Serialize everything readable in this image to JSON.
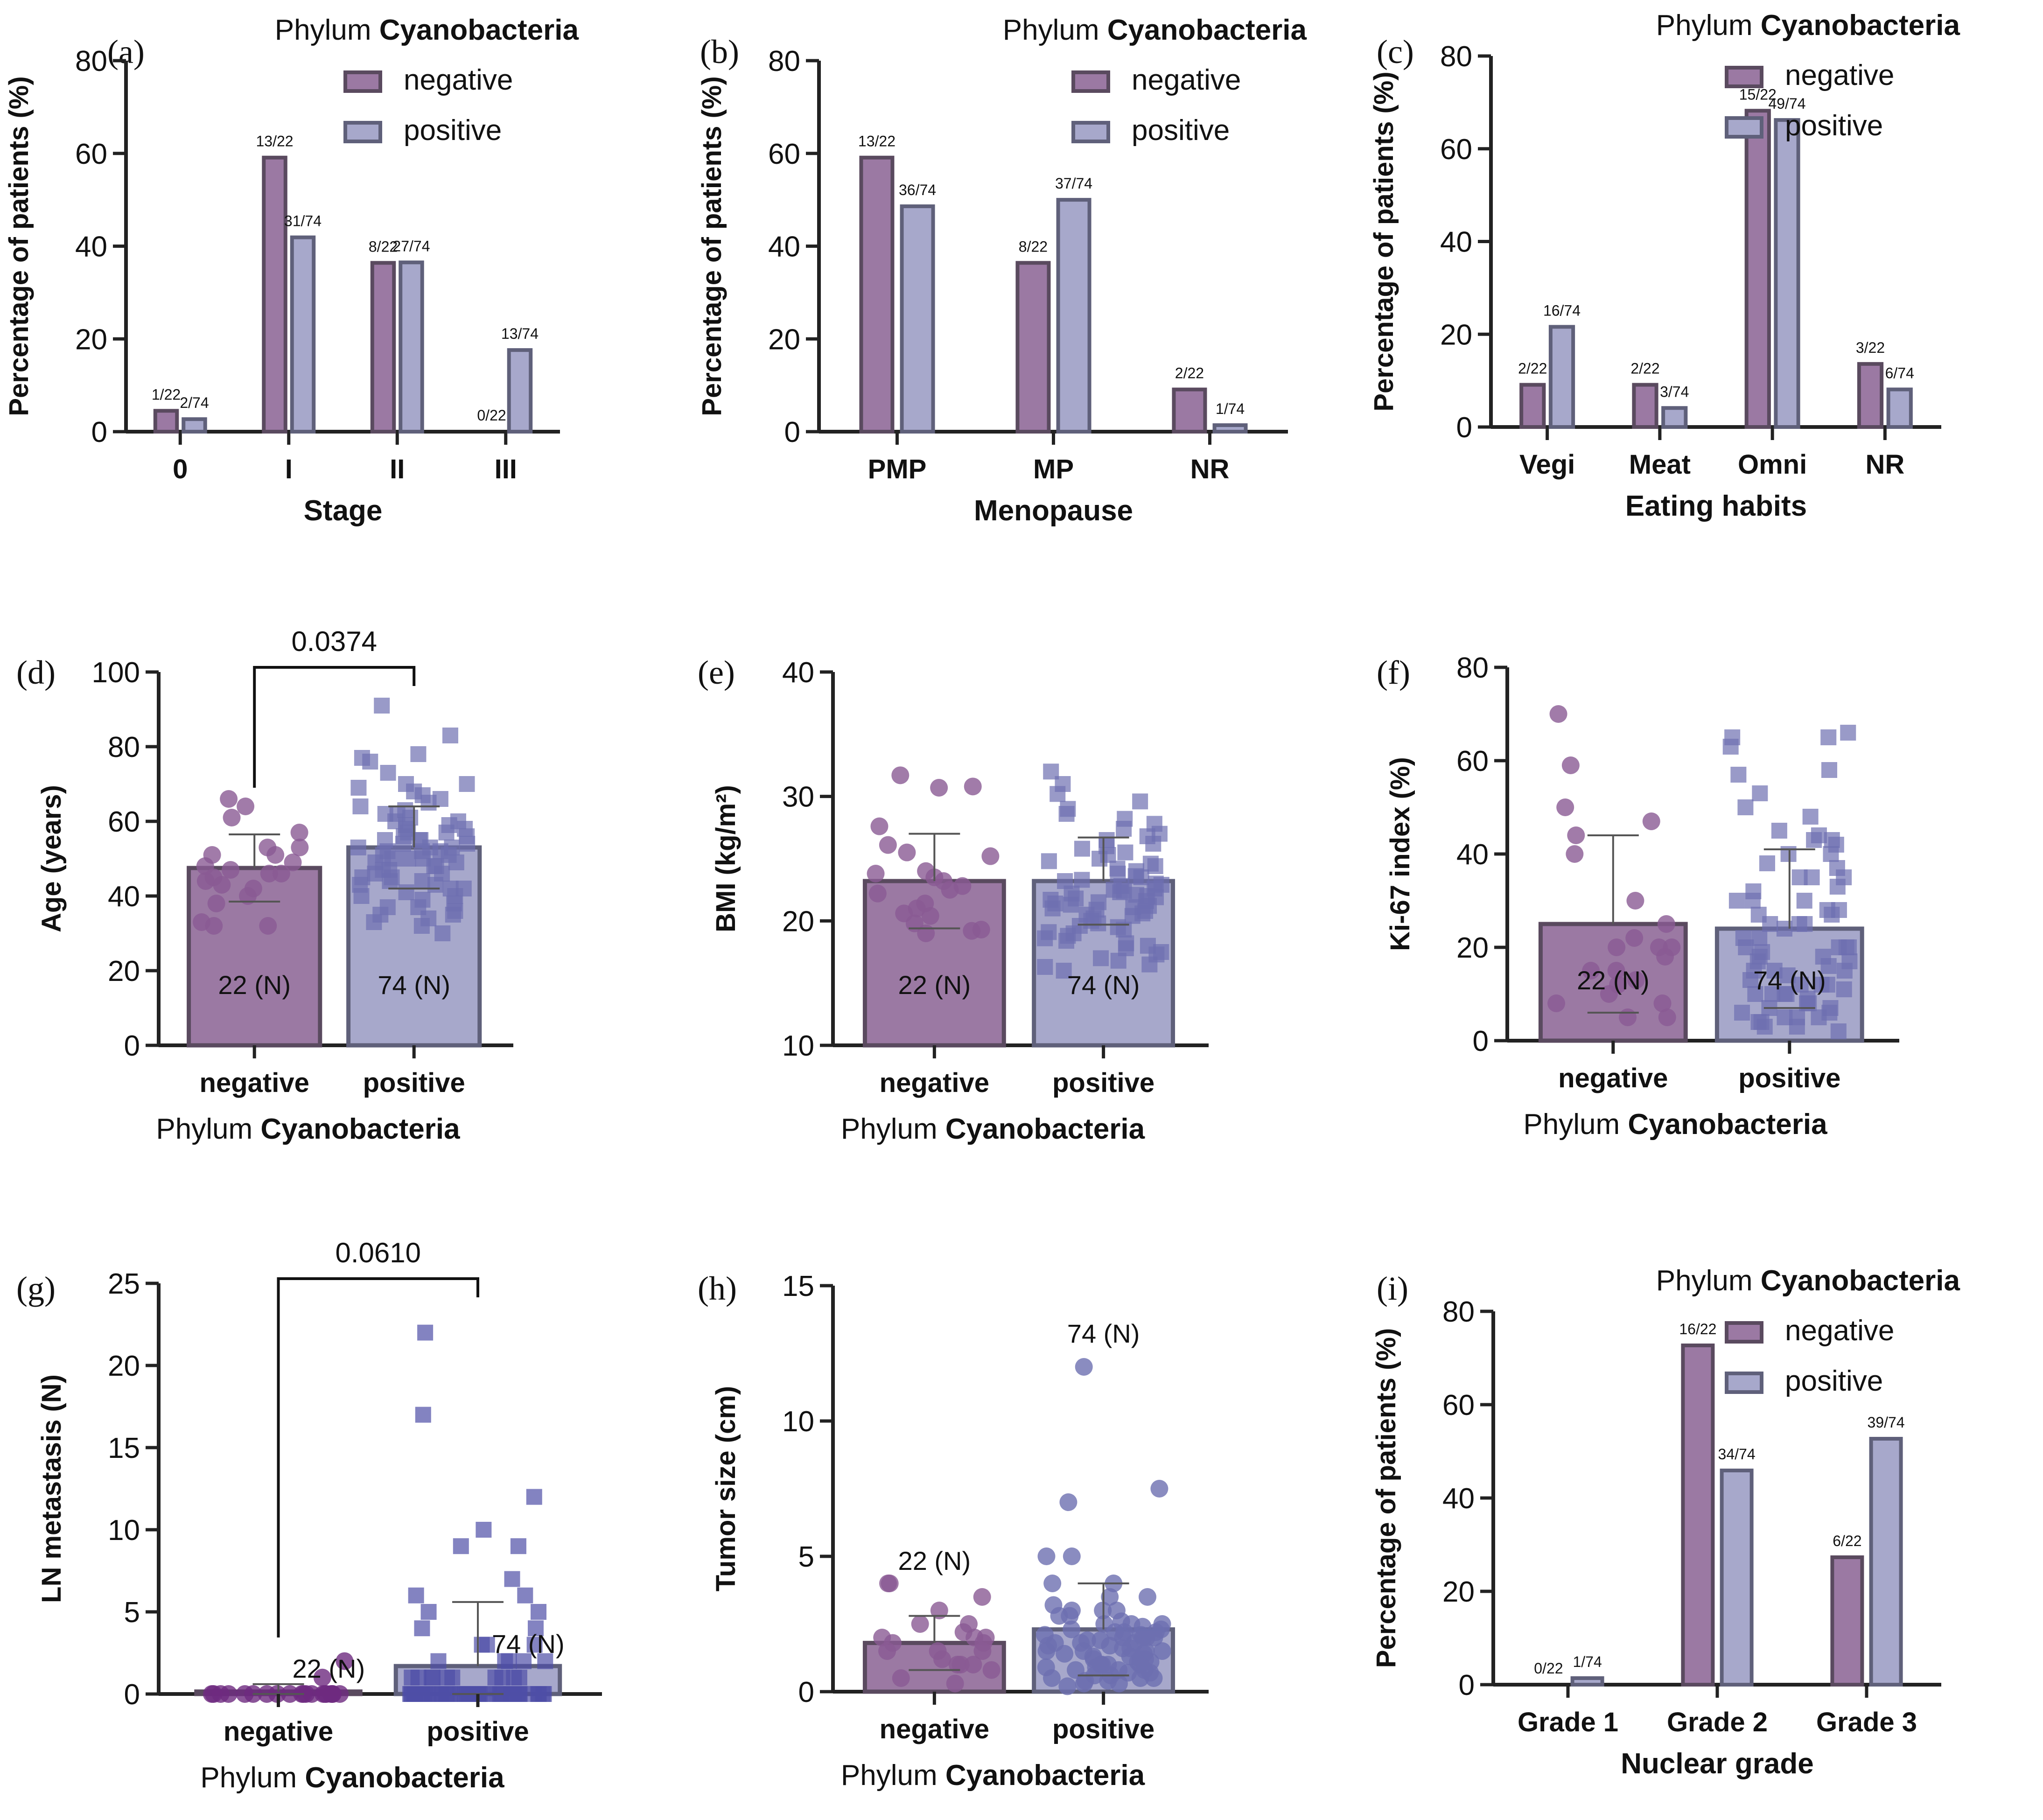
{
  "colors": {
    "negative_fill": "#9b79a3",
    "negative_stroke": "#5a4a5f",
    "positive_fill": "#a7a8cb",
    "positive_stroke": "#5f607a",
    "negative_point": "#8a5a94",
    "positive_point": "#6d6fb0",
    "ln_negative_point": "#6e2b80",
    "ln_positive_point": "#4e4fa6"
  },
  "chart_data": [
    {
      "panel": "(a)",
      "type": "bar",
      "legend_title_prefix": "Phylum ",
      "legend_title_bold": "Cyanobacteria",
      "series_names": [
        "negative",
        "positive"
      ],
      "categories": [
        "0",
        "I",
        "II",
        "III"
      ],
      "series": [
        {
          "name": "negative",
          "values": [
            4.5,
            59.1,
            36.4,
            0
          ],
          "labels": [
            "1/22",
            "13/22",
            "8/22",
            "0/22"
          ]
        },
        {
          "name": "positive",
          "values": [
            2.7,
            41.9,
            36.5,
            17.6
          ],
          "labels": [
            "2/74",
            "31/74",
            "27/74",
            "13/74"
          ]
        }
      ],
      "xlabel": "Stage",
      "ylabel": "Percentage of patients (%)",
      "ylim": [
        0,
        80
      ],
      "yticks": [
        "0",
        "20",
        "40",
        "60",
        "80"
      ]
    },
    {
      "panel": "(b)",
      "type": "bar",
      "legend_title_prefix": "Phylum ",
      "legend_title_bold": "Cyanobacteria",
      "series_names": [
        "negative",
        "positive"
      ],
      "categories": [
        "PMP",
        "MP",
        "NR"
      ],
      "series": [
        {
          "name": "negative",
          "values": [
            59.1,
            36.4,
            9.1
          ],
          "labels": [
            "13/22",
            "8/22",
            "2/22"
          ]
        },
        {
          "name": "positive",
          "values": [
            48.6,
            50.0,
            1.4
          ],
          "labels": [
            "36/74",
            "37/74",
            "1/74"
          ]
        }
      ],
      "xlabel": "Menopause",
      "ylabel": "Percentage of patients (%)",
      "ylim": [
        0,
        80
      ],
      "yticks": [
        "0",
        "20",
        "40",
        "60",
        "80"
      ]
    },
    {
      "panel": "(c)",
      "type": "bar",
      "legend_title_prefix": "Phylum ",
      "legend_title_bold": "Cyanobacteria",
      "series_names": [
        "negative",
        "positive"
      ],
      "categories": [
        "Vegi",
        "Meat",
        "Omni",
        "NR"
      ],
      "series": [
        {
          "name": "negative",
          "values": [
            9.1,
            9.1,
            68.2,
            13.6
          ],
          "labels": [
            "2/22",
            "2/22",
            "15/22",
            "3/22"
          ]
        },
        {
          "name": "positive",
          "values": [
            21.6,
            4.1,
            66.2,
            8.1
          ],
          "labels": [
            "16/74",
            "3/74",
            "49/74",
            "6/74"
          ]
        }
      ],
      "xlabel": "Eating habits",
      "ylabel": "Percentage of patients (%)",
      "ylim": [
        0,
        80
      ],
      "yticks": [
        "0",
        "20",
        "40",
        "60",
        "80"
      ]
    },
    {
      "panel": "(d)",
      "type": "scatter-bar",
      "categories": [
        "negative",
        "positive"
      ],
      "means": [
        47.5,
        53
      ],
      "sd": [
        9,
        11
      ],
      "n_labels": [
        "22 (N)",
        "74 (N)"
      ],
      "points": [
        [
          66,
          64,
          61,
          57,
          53,
          53,
          51,
          51,
          49,
          48,
          47,
          46,
          46,
          45,
          44,
          43,
          42,
          40,
          38,
          33,
          32,
          32
        ],
        [
          91,
          83,
          78,
          77,
          76,
          73,
          70,
          70,
          69,
          68,
          67,
          66,
          65,
          64,
          63,
          62,
          62,
          61,
          60,
          60,
          59,
          59,
          58,
          58,
          57,
          57,
          56,
          56,
          55,
          55,
          55,
          54,
          54,
          53,
          53,
          53,
          52,
          52,
          52,
          51,
          51,
          50,
          50,
          50,
          49,
          49,
          48,
          48,
          47,
          47,
          46,
          46,
          45,
          45,
          44,
          44,
          43,
          43,
          42,
          42,
          41,
          40,
          40,
          39,
          38,
          37,
          37,
          36,
          35,
          35,
          34,
          33,
          32,
          30
        ]
      ],
      "pvalue": "0.0374",
      "xlabel_prefix": "Phylum ",
      "xlabel_bold": "Cyanobacteria",
      "ylabel": "Age (years)",
      "ylim": [
        0,
        100
      ],
      "yticks": [
        "0",
        "20",
        "40",
        "60",
        "80",
        "100"
      ]
    },
    {
      "panel": "(e)",
      "type": "scatter-bar",
      "categories": [
        "negative",
        "positive"
      ],
      "means": [
        23.2,
        23.2
      ],
      "sd": [
        3.8,
        3.5
      ],
      "n_labels": [
        "22 (N)",
        "74 (N)"
      ],
      "points": [
        [
          31.7,
          30.8,
          30.7,
          27.6,
          26.1,
          25.5,
          25.2,
          24.0,
          23.8,
          23.5,
          23.2,
          22.8,
          22.5,
          22.2,
          21.4,
          21.0,
          20.6,
          20.4,
          19.8,
          19.3,
          19.2,
          19.0
        ],
        [
          32.0,
          31.0,
          30.2,
          29.6,
          29.0,
          28.6,
          28.2,
          27.8,
          27.4,
          27.0,
          26.8,
          26.5,
          26.2,
          26.0,
          25.8,
          25.5,
          25.3,
          25.0,
          24.8,
          24.6,
          24.4,
          24.2,
          24.0,
          23.8,
          23.6,
          23.5,
          23.3,
          23.2,
          23.0,
          22.9,
          22.8,
          22.6,
          22.5,
          22.4,
          22.3,
          22.2,
          22.1,
          22.0,
          21.9,
          21.8,
          21.7,
          21.6,
          21.5,
          21.4,
          21.3,
          21.2,
          21.1,
          21.0,
          20.9,
          20.8,
          20.6,
          20.5,
          20.4,
          20.2,
          20.0,
          19.8,
          19.6,
          19.5,
          19.3,
          19.1,
          19.0,
          18.8,
          18.6,
          18.4,
          18.2,
          18.0,
          17.8,
          17.5,
          17.3,
          17.0,
          16.8,
          16.5,
          16.3,
          16.0
        ]
      ],
      "pvalue": "",
      "xlabel_prefix": "Phylum ",
      "xlabel_bold": "Cyanobacteria",
      "ylabel": "BMI (kg/m²)",
      "ylim": [
        10,
        40
      ],
      "yticks": [
        "10",
        "20",
        "30",
        "40"
      ]
    },
    {
      "panel": "(f)",
      "type": "scatter-bar",
      "categories": [
        "negative",
        "positive"
      ],
      "means": [
        25,
        24
      ],
      "sd": [
        19,
        17
      ],
      "n_labels": [
        "22 (N)",
        "74 (N)"
      ],
      "points": [
        [
          70,
          59,
          50,
          47,
          44,
          40,
          30,
          25,
          22,
          20,
          20,
          20,
          18,
          15,
          15,
          13,
          12,
          10,
          8,
          8,
          5,
          5
        ],
        [
          66,
          65,
          65,
          63,
          58,
          57,
          53,
          50,
          48,
          45,
          44,
          43,
          43,
          42,
          40,
          40,
          38,
          37,
          35,
          35,
          35,
          33,
          32,
          30,
          30,
          30,
          28,
          28,
          27,
          27,
          25,
          25,
          25,
          24,
          22,
          22,
          20,
          20,
          20,
          20,
          19,
          18,
          18,
          17,
          17,
          16,
          15,
          15,
          15,
          14,
          13,
          12,
          12,
          12,
          11,
          10,
          10,
          10,
          10,
          9,
          8,
          8,
          7,
          7,
          6,
          6,
          5,
          5,
          5,
          4,
          4,
          3,
          3,
          2
        ]
      ],
      "pvalue": "",
      "xlabel_prefix": "Phylum ",
      "xlabel_bold": "Cyanobacteria",
      "ylabel": "Ki-67 index (%)",
      "ylim": [
        0,
        80
      ],
      "yticks": [
        "0",
        "20",
        "40",
        "60",
        "80"
      ]
    },
    {
      "panel": "(g)",
      "type": "scatter-bar",
      "categories": [
        "negative",
        "positive"
      ],
      "means": [
        0.15,
        1.7
      ],
      "sd": [
        0.45,
        3.9
      ],
      "n_labels": [
        "22 (N)",
        "74 (N)"
      ],
      "points": [
        [
          2,
          1,
          0,
          0,
          0,
          0,
          0,
          0,
          0,
          0,
          0,
          0,
          0,
          0,
          0,
          0,
          0,
          0,
          0,
          0,
          0,
          0
        ],
        [
          22,
          17,
          12,
          10,
          9,
          9,
          7,
          6,
          6,
          5,
          5,
          4,
          4,
          3,
          3,
          3,
          2,
          2,
          2,
          2,
          2,
          1,
          1,
          1,
          1,
          1,
          1,
          1,
          1,
          1,
          1,
          0,
          0,
          0,
          0,
          0,
          0,
          0,
          0,
          0,
          0,
          0,
          0,
          0,
          0,
          0,
          0,
          0,
          0,
          0,
          0,
          0,
          0,
          0,
          0,
          0,
          0,
          0,
          0,
          0,
          0,
          0,
          0,
          0,
          0,
          0,
          0,
          0,
          0,
          0,
          0,
          0,
          0,
          0
        ]
      ],
      "pvalue": "0.0610",
      "xlabel_prefix": "Phylum ",
      "xlabel_bold": "Cyanobacteria",
      "ylabel": "LN metastasis (N)",
      "ylim": [
        0,
        25
      ],
      "yticks": [
        "0",
        "5",
        "10",
        "15",
        "20",
        "25"
      ]
    },
    {
      "panel": "(h)",
      "type": "scatter-bar",
      "categories": [
        "negative",
        "positive"
      ],
      "means": [
        1.8,
        2.3
      ],
      "sd": [
        1.0,
        1.7
      ],
      "n_labels": [
        "22 (N)",
        "74 (N)"
      ],
      "points": [
        [
          4.0,
          4.0,
          3.5,
          3.0,
          2.5,
          2.5,
          2.2,
          2.0,
          2.0,
          2.0,
          1.8,
          1.8,
          1.5,
          1.5,
          1.5,
          1.2,
          1.0,
          1.0,
          1.0,
          0.8,
          0.5,
          0.3
        ],
        [
          12.0,
          7.5,
          7.0,
          5.0,
          5.0,
          4.0,
          4.0,
          3.5,
          3.5,
          3.2,
          3.0,
          3.0,
          3.0,
          2.8,
          2.8,
          2.6,
          2.5,
          2.5,
          2.5,
          2.4,
          2.3,
          2.3,
          2.2,
          2.2,
          2.2,
          2.1,
          2.1,
          2.0,
          2.0,
          2.0,
          2.0,
          1.9,
          1.9,
          1.8,
          1.8,
          1.8,
          1.7,
          1.7,
          1.6,
          1.6,
          1.5,
          1.5,
          1.5,
          1.5,
          1.4,
          1.4,
          1.3,
          1.3,
          1.2,
          1.2,
          1.2,
          1.1,
          1.1,
          1.0,
          1.0,
          1.0,
          1.0,
          0.9,
          0.9,
          0.8,
          0.8,
          0.8,
          0.7,
          0.7,
          0.6,
          0.6,
          0.5,
          0.5,
          0.5,
          0.4,
          0.4,
          0.3,
          0.3,
          0.2
        ]
      ],
      "pvalue": "",
      "xlabel_prefix": "Phylum ",
      "xlabel_bold": "Cyanobacteria",
      "ylabel": "Tumor size (cm)",
      "ylim": [
        0,
        15
      ],
      "yticks": [
        "0",
        "5",
        "10",
        "15"
      ]
    },
    {
      "panel": "(i)",
      "type": "bar",
      "legend_title_prefix": "Phylum ",
      "legend_title_bold": "Cyanobacteria",
      "series_names": [
        "negative",
        "positive"
      ],
      "categories": [
        "Grade 1",
        "Grade 2",
        "Grade 3"
      ],
      "series": [
        {
          "name": "negative",
          "values": [
            0,
            72.7,
            27.3
          ],
          "labels": [
            "0/22",
            "16/22",
            "6/22"
          ]
        },
        {
          "name": "positive",
          "values": [
            1.4,
            45.9,
            52.7
          ],
          "labels": [
            "1/74",
            "34/74",
            "39/74"
          ]
        }
      ],
      "xlabel": "Nuclear grade",
      "ylabel": "Percentage of patients (%)",
      "ylim": [
        0,
        80
      ],
      "yticks": [
        "0",
        "20",
        "40",
        "60",
        "80"
      ]
    }
  ]
}
